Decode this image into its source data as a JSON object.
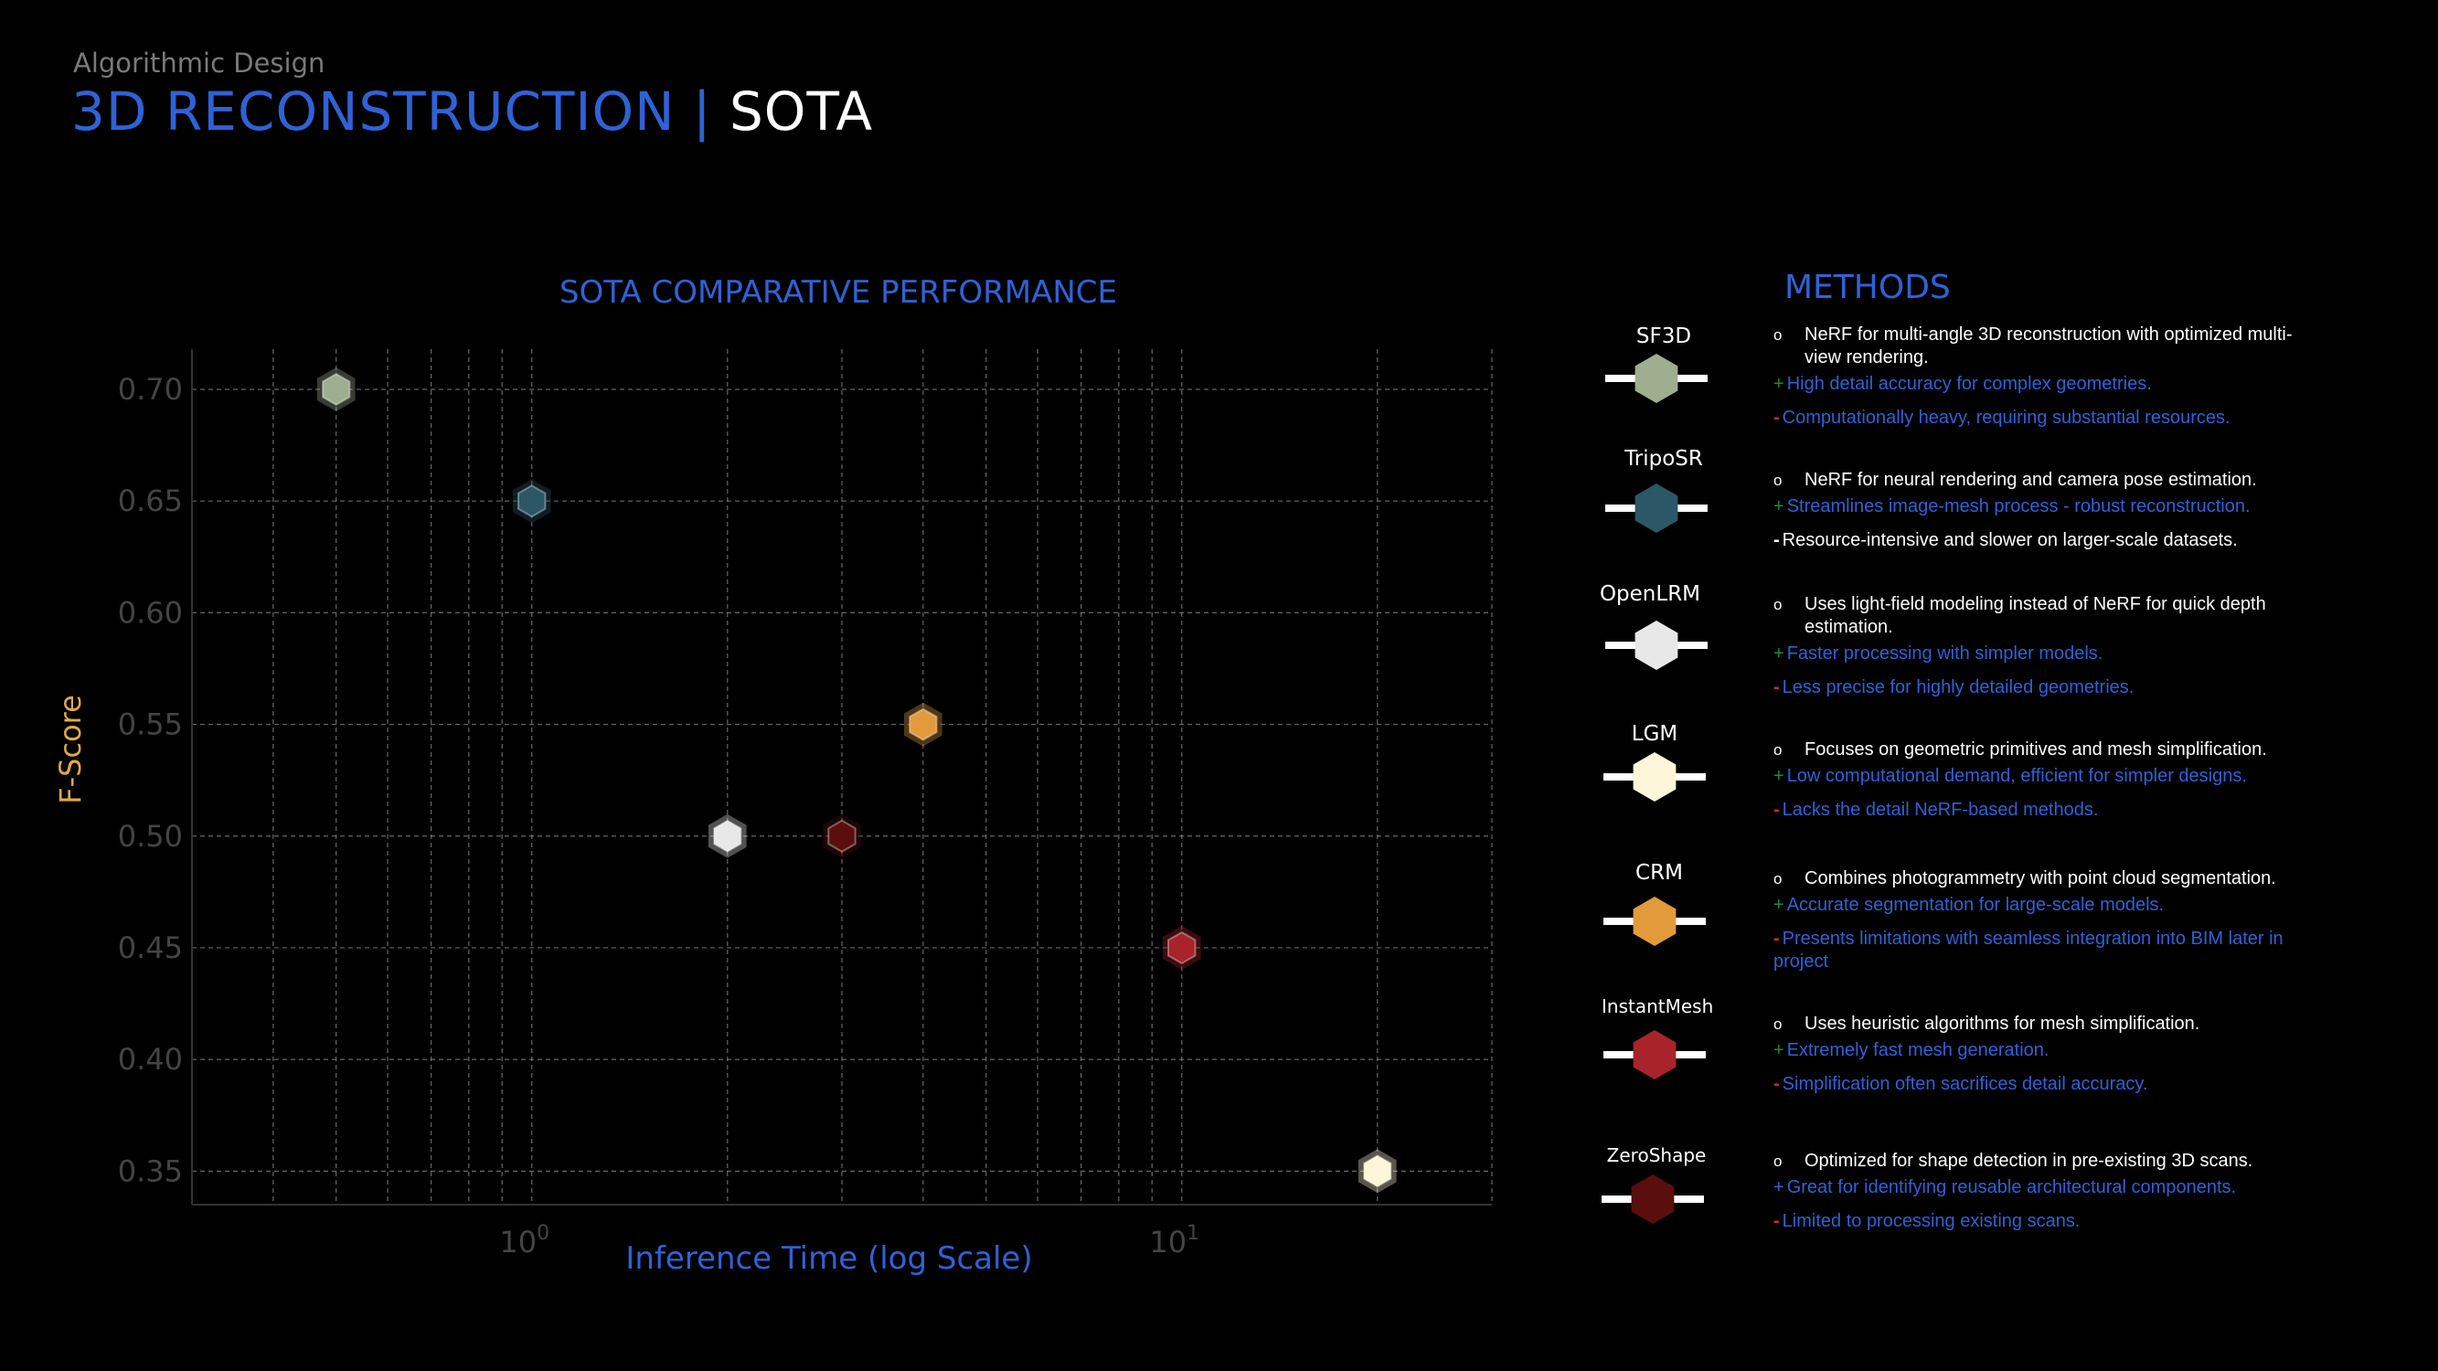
{
  "header": {
    "subtitle": "Algorithmic Design",
    "title_main": "3D RECONSTRUCTION",
    "title_sep": "|",
    "title_suffix": "SOTA"
  },
  "chart_data": {
    "type": "scatter",
    "title": "SOTA COMPARATIVE PERFORMANCE",
    "xlabel": "Inference Time (log Scale)",
    "ylabel": "F-Score",
    "xscale": "log",
    "xlim": [
      0.3,
      30
    ],
    "ylim": [
      0.335,
      0.718
    ],
    "grid": true,
    "y_ticks": [
      "0.70",
      "0.65",
      "0.60",
      "0.55",
      "0.50",
      "0.45",
      "0.40",
      "0.35"
    ],
    "x_ticks": [
      "10^0",
      "10^1"
    ],
    "points": [
      {
        "name": "SF3D",
        "x": 0.5,
        "y": 0.7,
        "color": "#9fae8f"
      },
      {
        "name": "TripoSR",
        "x": 1.0,
        "y": 0.65,
        "color": "#2c5766"
      },
      {
        "name": "OpenLRM",
        "x": 2.0,
        "y": 0.5,
        "color": "#e8e8e8"
      },
      {
        "name": "ZeroShape",
        "x": 3.0,
        "y": 0.5,
        "color": "#5a0e0e"
      },
      {
        "name": "CRM",
        "x": 4.0,
        "y": 0.55,
        "color": "#e39a3b"
      },
      {
        "name": "InstantMesh",
        "x": 10.0,
        "y": 0.45,
        "color": "#a8232a"
      },
      {
        "name": "LGM",
        "x": 20.0,
        "y": 0.35,
        "color": "#fdf6d8"
      }
    ]
  },
  "methods": {
    "title": "METHODS",
    "items": [
      {
        "name": "SF3D",
        "color": "#9fae8f",
        "desc": "NeRF for multi-angle 3D reconstruction with optimized multi-view rendering.",
        "pro_sym": "+",
        "pro": "High detail accuracy for complex geometries.",
        "con_sym": "-",
        "con": "Computationally heavy, requiring substantial resources."
      },
      {
        "name": "TripoSR",
        "color": "#2c5766",
        "desc": "NeRF for neural rendering and camera pose estimation.",
        "pro_sym": "+",
        "pro": "Streamlines image-mesh process - robust reconstruction.",
        "con_sym": "-",
        "con": "Resource-intensive and slower on larger-scale datasets."
      },
      {
        "name": "OpenLRM",
        "color": "#e8e8e8",
        "desc": "Uses light-field modeling instead of NeRF for quick depth estimation.",
        "pro_sym": "+",
        "pro": "Faster processing with simpler models.",
        "con_sym": "-",
        "con": "Less precise for highly detailed geometries."
      },
      {
        "name": "LGM",
        "color": "#fdf6d8",
        "desc": "Focuses on geometric primitives and mesh simplification.",
        "pro_sym": "+",
        "pro": "Low computational demand, efficient for simpler designs.",
        "con_sym": "-",
        "con": "Lacks the detail NeRF-based methods."
      },
      {
        "name": "CRM",
        "color": "#e39a3b",
        "desc": "Combines photogrammetry with point cloud segmentation.",
        "pro_sym": "+",
        "pro": "Accurate segmentation for large-scale models.",
        "con_sym": "-",
        "con": "Presents limitations with seamless integration into BIM later in project"
      },
      {
        "name": "InstantMesh",
        "color": "#a8232a",
        "desc": "Uses heuristic algorithms for mesh simplification.",
        "pro_sym": "+",
        "pro": "Extremely fast mesh generation.",
        "con_sym": "-",
        "con": "Simplification often sacrifices detail accuracy."
      },
      {
        "name": "ZeroShape",
        "color": "#5a0e0e",
        "desc": "Optimized for shape detection in pre-existing 3D scans.",
        "pro_sym": "+",
        "pro": "Great for identifying reusable architectural components.",
        "con_sym": "-",
        "con": "Limited to processing existing scans."
      }
    ]
  },
  "colors": {
    "accent_blue": "#2f62d6",
    "ylabel_color": "#e0a84c",
    "grid": "#8a8a8a",
    "tick": "#444444"
  }
}
